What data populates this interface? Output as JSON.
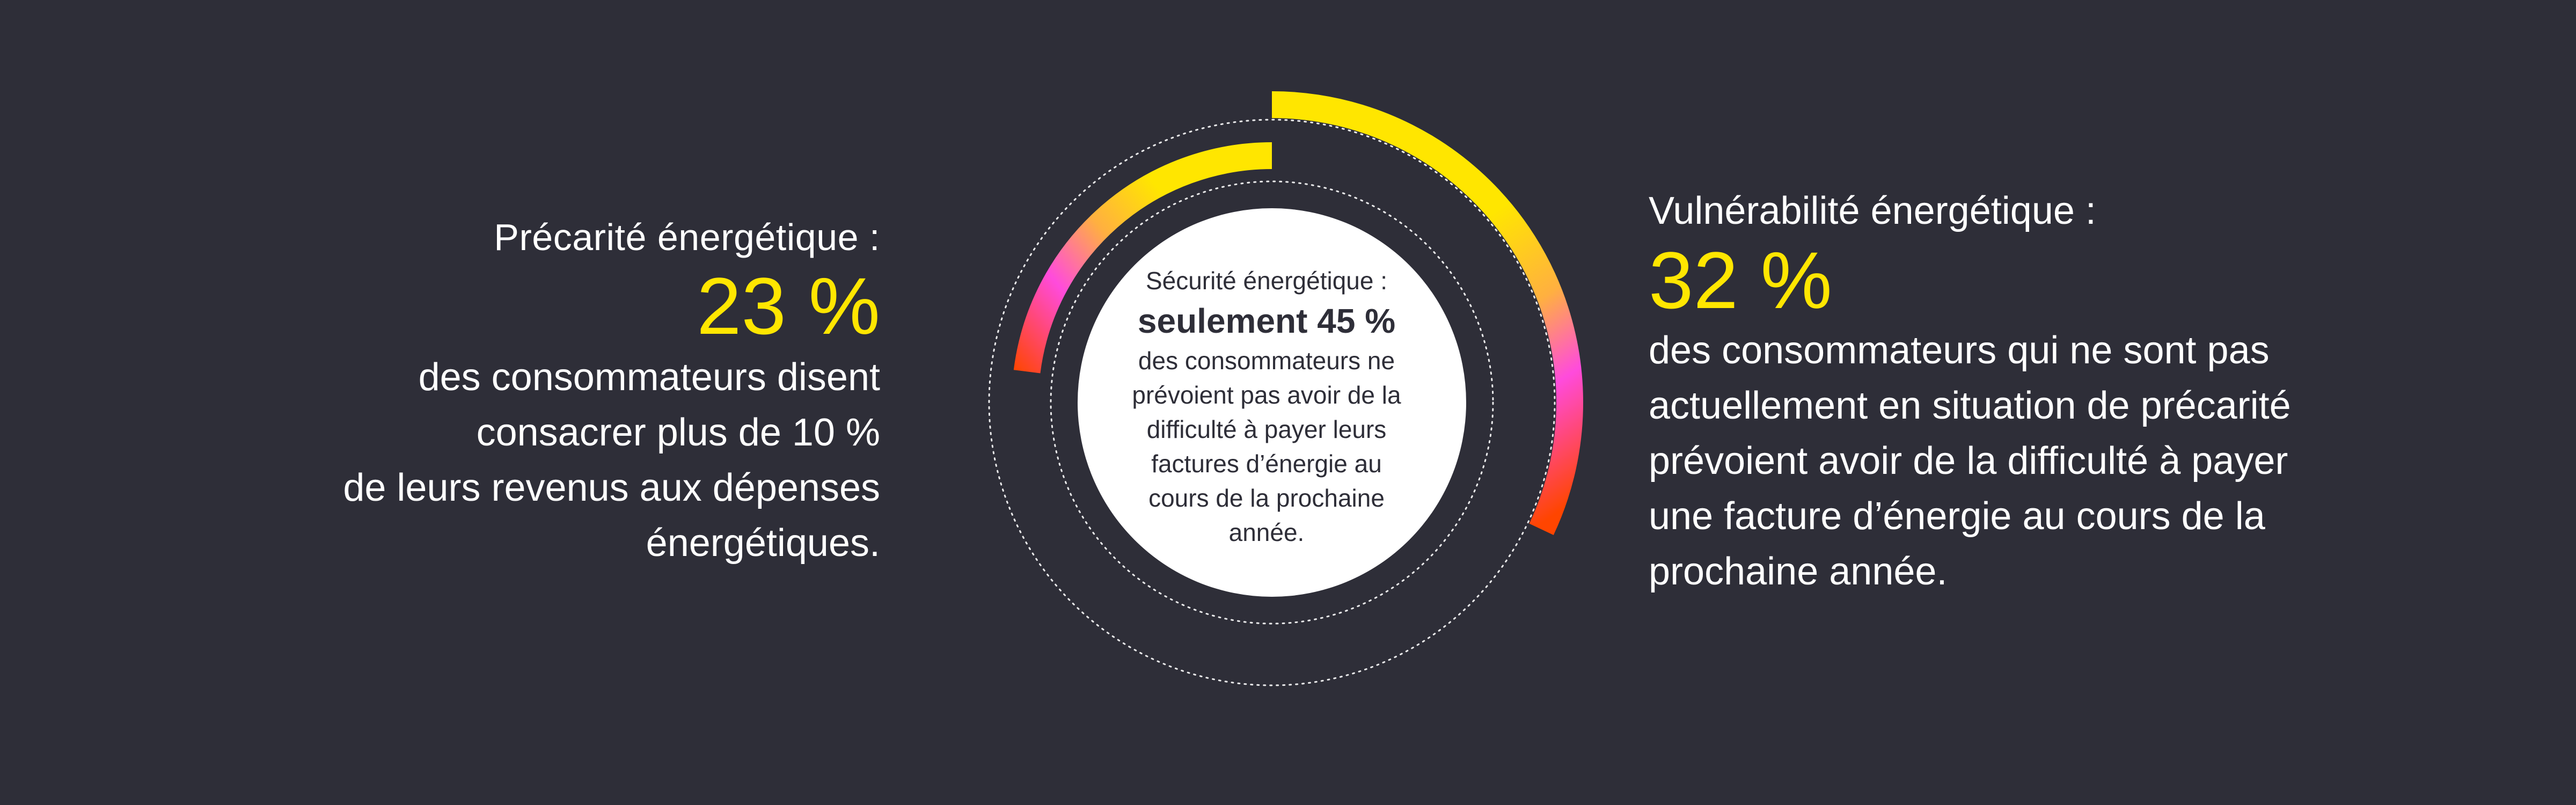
{
  "left": {
    "title": "Précarité énergétique :",
    "stat": "23 %",
    "description": [
      "des consommateurs disent",
      "consacrer plus de 10 %",
      "de leurs revenus aux dépenses",
      "énergétiques."
    ]
  },
  "center": {
    "title": "Sécurité énergétique :",
    "stat": "seulement 45 %",
    "description": [
      "des consommateurs ne",
      "prévoient pas avoir de la",
      "difficulté à payer leurs",
      "factures d’énergie au",
      "cours de la prochaine",
      "année."
    ]
  },
  "right": {
    "title": "Vulnérabilité énergétique :",
    "stat": "32 %",
    "description": [
      "des consommateurs qui ne sont pas",
      "actuellement en situation de précarité",
      "prévoient avoir de la difficulté à payer",
      "une facture d’énergie au cours de la",
      "prochaine année."
    ]
  },
  "colors": {
    "background": "#2e2e38",
    "accent_yellow": "#ffe600",
    "accent_magenta": "#ff4bdc",
    "accent_orange": "#ff6a2a",
    "accent_red": "#ff4500",
    "text_light": "#ffffff",
    "text_dark": "#2e2e38",
    "ring_dotted": "#ffffff"
  },
  "chart_data": {
    "type": "radial-bar",
    "rings": [
      {
        "label": "Vulnérabilité énergétique",
        "value": 32,
        "unit": "%",
        "position": "outer"
      },
      {
        "label": "Précarité énergétique",
        "value": 23,
        "unit": "%",
        "position": "inner"
      }
    ],
    "center": {
      "label": "Sécurité énergétique",
      "value": 45,
      "unit": "%"
    }
  }
}
